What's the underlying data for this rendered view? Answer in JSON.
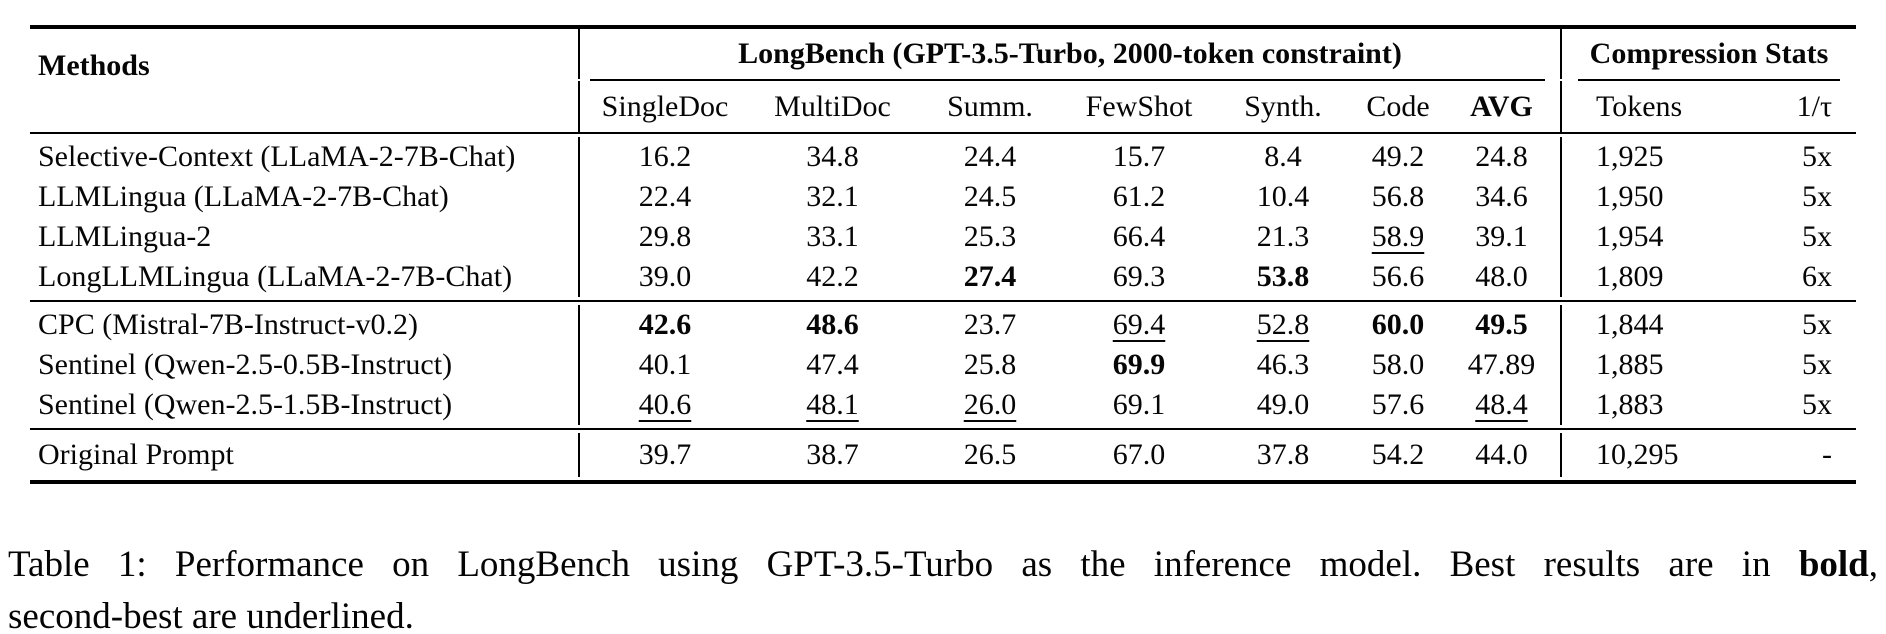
{
  "page": {
    "background": "#ffffff",
    "text_color": "#060606",
    "rule_color": "#000000"
  },
  "table": {
    "group_headers": {
      "methods": "Methods",
      "longbench": "LongBench (GPT-3.5-Turbo, 2000-token constraint)",
      "compression": "Compression Stats"
    },
    "columns": [
      {
        "label": "SingleDoc",
        "bold": false
      },
      {
        "label": "MultiDoc",
        "bold": false
      },
      {
        "label": "Summ.",
        "bold": false
      },
      {
        "label": "FewShot",
        "bold": false
      },
      {
        "label": "Synth.",
        "bold": false
      },
      {
        "label": "Code",
        "bold": false
      },
      {
        "label": "AVG",
        "bold": true
      },
      {
        "label": "Tokens",
        "bold": false
      },
      {
        "label": "1/τ",
        "bold": false
      }
    ],
    "row_groups": [
      {
        "rows": [
          {
            "method": "Selective-Context (LLaMA-2-7B-Chat)",
            "cells": [
              {
                "v": "16.2"
              },
              {
                "v": "34.8"
              },
              {
                "v": "24.4"
              },
              {
                "v": "15.7"
              },
              {
                "v": "8.4"
              },
              {
                "v": "49.2"
              },
              {
                "v": "24.8"
              },
              {
                "v": "1,925"
              },
              {
                "v": "5x"
              }
            ]
          },
          {
            "method": "LLMLingua (LLaMA-2-7B-Chat)",
            "cells": [
              {
                "v": "22.4"
              },
              {
                "v": "32.1"
              },
              {
                "v": "24.5"
              },
              {
                "v": "61.2"
              },
              {
                "v": "10.4"
              },
              {
                "v": "56.8"
              },
              {
                "v": "34.6"
              },
              {
                "v": "1,950"
              },
              {
                "v": "5x"
              }
            ]
          },
          {
            "method": "LLMLingua-2",
            "cells": [
              {
                "v": "29.8"
              },
              {
                "v": "33.1"
              },
              {
                "v": "25.3"
              },
              {
                "v": "66.4"
              },
              {
                "v": "21.3"
              },
              {
                "v": "58.9",
                "s": "u"
              },
              {
                "v": "39.1"
              },
              {
                "v": "1,954"
              },
              {
                "v": "5x"
              }
            ]
          },
          {
            "method": "LongLLMLingua (LLaMA-2-7B-Chat)",
            "cells": [
              {
                "v": "39.0"
              },
              {
                "v": "42.2"
              },
              {
                "v": "27.4",
                "s": "b"
              },
              {
                "v": "69.3"
              },
              {
                "v": "53.8",
                "s": "b"
              },
              {
                "v": "56.6"
              },
              {
                "v": "48.0"
              },
              {
                "v": "1,809"
              },
              {
                "v": "6x"
              }
            ]
          }
        ]
      },
      {
        "rows": [
          {
            "method": "CPC (Mistral-7B-Instruct-v0.2)",
            "cells": [
              {
                "v": "42.6",
                "s": "b"
              },
              {
                "v": "48.6",
                "s": "b"
              },
              {
                "v": "23.7"
              },
              {
                "v": "69.4",
                "s": "u"
              },
              {
                "v": "52.8",
                "s": "u"
              },
              {
                "v": "60.0",
                "s": "b"
              },
              {
                "v": "49.5",
                "s": "b"
              },
              {
                "v": "1,844"
              },
              {
                "v": "5x"
              }
            ]
          },
          {
            "method": "Sentinel (Qwen-2.5-0.5B-Instruct)",
            "cells": [
              {
                "v": "40.1"
              },
              {
                "v": "47.4"
              },
              {
                "v": "25.8"
              },
              {
                "v": "69.9",
                "s": "b"
              },
              {
                "v": "46.3"
              },
              {
                "v": "58.0"
              },
              {
                "v": "47.89"
              },
              {
                "v": "1,885"
              },
              {
                "v": "5x"
              }
            ]
          },
          {
            "method": "Sentinel (Qwen-2.5-1.5B-Instruct)",
            "cells": [
              {
                "v": "40.6",
                "s": "u"
              },
              {
                "v": "48.1",
                "s": "u"
              },
              {
                "v": "26.0",
                "s": "u"
              },
              {
                "v": "69.1"
              },
              {
                "v": "49.0"
              },
              {
                "v": "57.6"
              },
              {
                "v": "48.4",
                "s": "u"
              },
              {
                "v": "1,883"
              },
              {
                "v": "5x"
              }
            ]
          }
        ]
      },
      {
        "rows": [
          {
            "method": "Original Prompt",
            "cells": [
              {
                "v": "39.7"
              },
              {
                "v": "38.7"
              },
              {
                "v": "26.5"
              },
              {
                "v": "67.0"
              },
              {
                "v": "37.8"
              },
              {
                "v": "54.2"
              },
              {
                "v": "44.0"
              },
              {
                "v": "10,295"
              },
              {
                "v": "-"
              }
            ]
          }
        ]
      }
    ]
  },
  "caption": {
    "line1": [
      {
        "t": "Table 1: Performance on LongBench using GPT-3.5-Turbo as the inference model. Best results are in "
      },
      {
        "t": "bold",
        "s": "b"
      },
      {
        "t": ","
      }
    ],
    "line2": [
      {
        "t": "second-best are "
      },
      {
        "t": "underlined",
        "s": "u"
      },
      {
        "t": "."
      }
    ]
  }
}
